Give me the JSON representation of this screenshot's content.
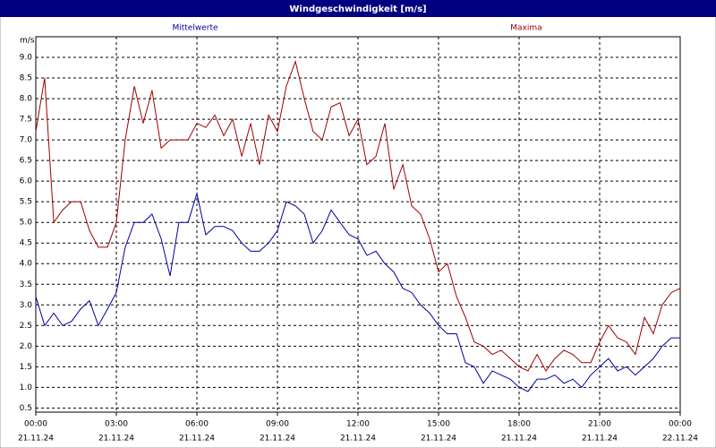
{
  "chart_data": {
    "type": "line",
    "title": "Windgeschwindigkeit [m/s]",
    "y_label": "m/s",
    "x": [
      0,
      0.33,
      0.67,
      1,
      1.33,
      1.67,
      2,
      2.33,
      2.67,
      3,
      3.33,
      3.67,
      4,
      4.33,
      4.67,
      5,
      5.33,
      5.67,
      6,
      6.33,
      6.67,
      7,
      7.33,
      7.67,
      8,
      8.33,
      8.67,
      9,
      9.33,
      9.67,
      10,
      10.33,
      10.67,
      11,
      11.33,
      11.67,
      12,
      12.33,
      12.67,
      13,
      13.33,
      13.67,
      14,
      14.33,
      14.67,
      15,
      15.33,
      15.67,
      16,
      16.33,
      16.67,
      17,
      17.33,
      17.67,
      18,
      18.33,
      18.67,
      19,
      19.33,
      19.67,
      20,
      20.33,
      20.67,
      21,
      21.33,
      21.67,
      22,
      22.33,
      22.67,
      23,
      23.33,
      23.67,
      24
    ],
    "series": [
      {
        "name": "Mittelwerte",
        "color": "#0000a0",
        "values": [
          3.2,
          2.5,
          2.8,
          2.5,
          2.6,
          2.9,
          3.1,
          2.5,
          2.9,
          3.3,
          4.4,
          5.0,
          5.0,
          5.2,
          4.6,
          3.7,
          5.0,
          5.0,
          5.7,
          4.7,
          4.9,
          4.9,
          4.8,
          4.5,
          4.3,
          4.3,
          4.5,
          4.8,
          5.5,
          5.4,
          5.2,
          4.5,
          4.8,
          5.3,
          5.0,
          4.7,
          4.6,
          4.2,
          4.3,
          4.0,
          3.8,
          3.4,
          3.3,
          3.0,
          2.8,
          2.5,
          2.3,
          2.3,
          1.6,
          1.5,
          1.1,
          1.4,
          1.3,
          1.2,
          1.0,
          0.9,
          1.2,
          1.2,
          1.3,
          1.1,
          1.2,
          1.0,
          1.3,
          1.5,
          1.7,
          1.4,
          1.5,
          1.3,
          1.5,
          1.7,
          2.0,
          2.2,
          2.2
        ]
      },
      {
        "name": "Maxima",
        "color": "#a00000",
        "values": [
          7.2,
          8.5,
          5.0,
          5.3,
          5.5,
          5.5,
          4.8,
          4.4,
          4.4,
          5.0,
          7.0,
          8.3,
          7.4,
          8.2,
          6.8,
          7.0,
          7.0,
          7.0,
          7.4,
          7.3,
          7.6,
          7.1,
          7.5,
          6.6,
          7.4,
          6.4,
          7.6,
          7.2,
          8.3,
          8.9,
          8.0,
          7.2,
          7.0,
          7.8,
          7.9,
          7.1,
          7.5,
          6.4,
          6.6,
          7.4,
          5.8,
          6.4,
          5.4,
          5.2,
          4.6,
          3.8,
          4.0,
          3.2,
          2.7,
          2.1,
          2.0,
          1.8,
          1.9,
          1.7,
          1.5,
          1.4,
          1.8,
          1.4,
          1.7,
          1.9,
          1.8,
          1.6,
          1.6,
          2.1,
          2.5,
          2.2,
          2.1,
          1.8,
          2.7,
          2.3,
          3.0,
          3.3,
          3.4
        ]
      }
    ],
    "xlim": [
      0,
      24
    ],
    "xticks": [
      {
        "value": 0,
        "label": "00:00"
      },
      {
        "value": 3,
        "label": "03:00"
      },
      {
        "value": 6,
        "label": "06:00"
      },
      {
        "value": 9,
        "label": "09:00"
      },
      {
        "value": 12,
        "label": "12:00"
      },
      {
        "value": 15,
        "label": "15:00"
      },
      {
        "value": 18,
        "label": "18:00"
      },
      {
        "value": 21,
        "label": "21:00"
      },
      {
        "value": 24,
        "label": "00:00"
      }
    ],
    "xtick_dates": [
      "21.11.24",
      "21.11.24",
      "21.11.24",
      "21.11.24",
      "21.11.24",
      "21.11.24",
      "21.11.24",
      "21.11.24",
      "22.11.24"
    ],
    "ylim": [
      0.4,
      9.5
    ],
    "yticks": [
      0.5,
      {
        "value": 1,
        "label": "1.0"
      },
      1.5,
      {
        "value": 2,
        "label": "2.0"
      },
      2.5,
      {
        "value": 3,
        "label": "3.0"
      },
      3.5,
      {
        "value": 4,
        "label": "4.0"
      },
      4.5,
      {
        "value": 5,
        "label": "5.0"
      },
      5.5,
      {
        "value": 6,
        "label": "6.0"
      },
      6.5,
      {
        "value": 7,
        "label": "7.0"
      },
      7.5,
      {
        "value": 8,
        "label": "8.0"
      },
      8.5,
      {
        "value": 9,
        "label": "9.0"
      }
    ],
    "grid": true
  }
}
